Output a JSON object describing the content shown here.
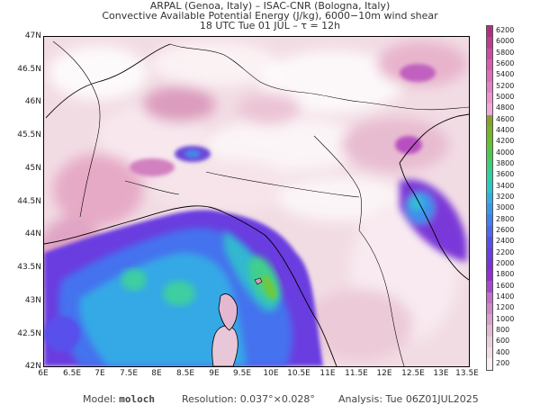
{
  "header": {
    "line1": "ARPAL (Genoa, Italy)  –  ISAC-CNR (Bologna, Italy)",
    "line2": "Convective Available Potential Energy (J/kg), 6000−10m wind shear",
    "line3": "18 UTC Tue 01 JUL  –  τ = 12h"
  },
  "axes": {
    "lat_labels": [
      "47N",
      "46.5N",
      "46N",
      "45.5N",
      "45N",
      "44.5N",
      "44N",
      "43.5N",
      "43N",
      "42.5N",
      "42N"
    ],
    "lon_labels": [
      "6E",
      "6.5E",
      "7E",
      "7.5E",
      "8E",
      "8.5E",
      "9E",
      "9.5E",
      "10E",
      "10.5E",
      "11E",
      "11.5E",
      "12E",
      "12.5E",
      "13E",
      "13.5E"
    ],
    "lat_range": [
      42,
      47
    ],
    "lon_range": [
      6,
      13.5
    ]
  },
  "colorbar": {
    "labels": [
      "6200",
      "6000",
      "5800",
      "5600",
      "5400",
      "5200",
      "5000",
      "4800",
      "4600",
      "4400",
      "4200",
      "4000",
      "3800",
      "3600",
      "3400",
      "3200",
      "3000",
      "2800",
      "2600",
      "2400",
      "2200",
      "2000",
      "1800",
      "1600",
      "1400",
      "1200",
      "1000",
      "800",
      "600",
      "400",
      "200"
    ],
    "colors": [
      "#b03080",
      "#c23c92",
      "#d04aa2",
      "#d95cb0",
      "#e06ebc",
      "#e680c6",
      "#ec94d0",
      "#f0a8da",
      "#88a030",
      "#78b428",
      "#66c030",
      "#50c850",
      "#3ccf78",
      "#30d0a0",
      "#2cc8c8",
      "#30b0e0",
      "#3898ec",
      "#4080f0",
      "#4c68f0",
      "#5850ec",
      "#6840e4",
      "#7c30dc",
      "#9030d4",
      "#a848cc",
      "#c070c8",
      "#cc88c8",
      "#d8a0cc",
      "#e2b8d2",
      "#ecccda",
      "#f4dce4",
      "#faeef2"
    ]
  },
  "footer": {
    "model_label": "Model:",
    "model_value": "moloch",
    "resolution_label": "Resolution:",
    "resolution_value": "0.037°×0.028°",
    "analysis_label": "Analysis:",
    "analysis_value": "Tue 06Z01JUL2025"
  }
}
